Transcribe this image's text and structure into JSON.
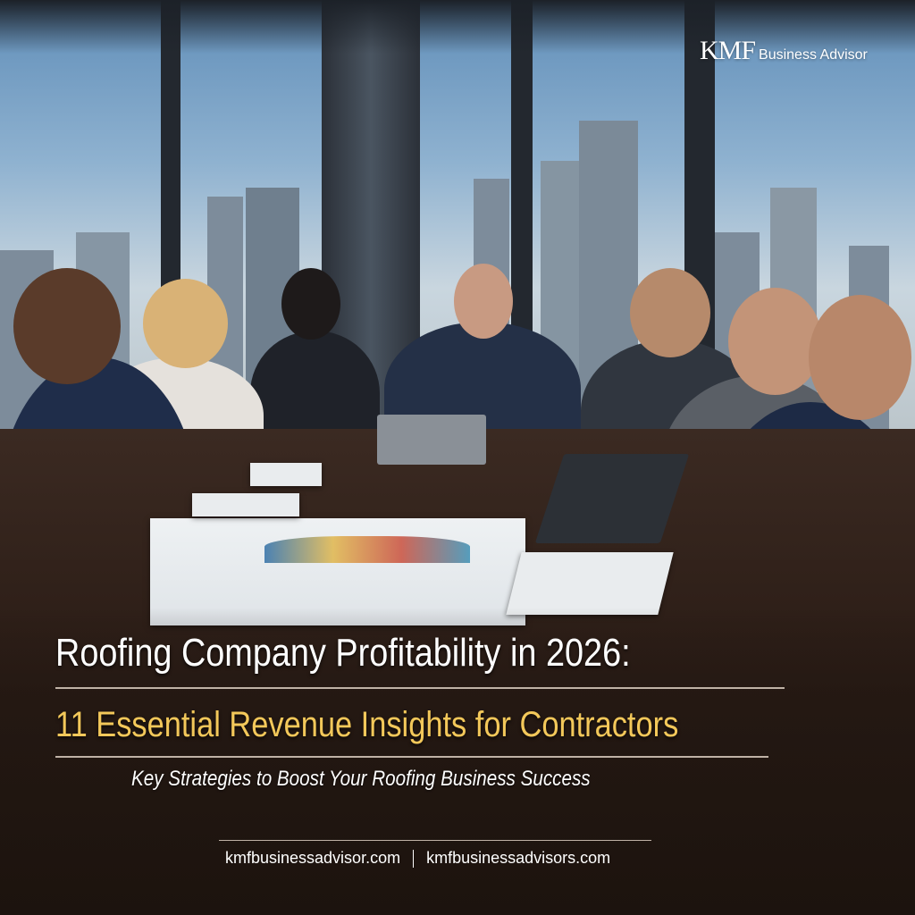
{
  "brand": {
    "logo_mark": "KMF",
    "logo_text": "Business Advisor"
  },
  "headline": {
    "title": "Roofing Company Profitability in 2026:",
    "subtitle": "11 Essential Revenue Insights for Contractors",
    "tagline": "Key Strategies to Boost Your Roofing Business Success"
  },
  "footer": {
    "urls": [
      "kmfbusinessadvisor.com",
      "kmfbusinessadvisors.com"
    ]
  },
  "colors": {
    "title": "#ffffff",
    "subtitle": "#f3c85a",
    "table": "#3b2a22"
  }
}
